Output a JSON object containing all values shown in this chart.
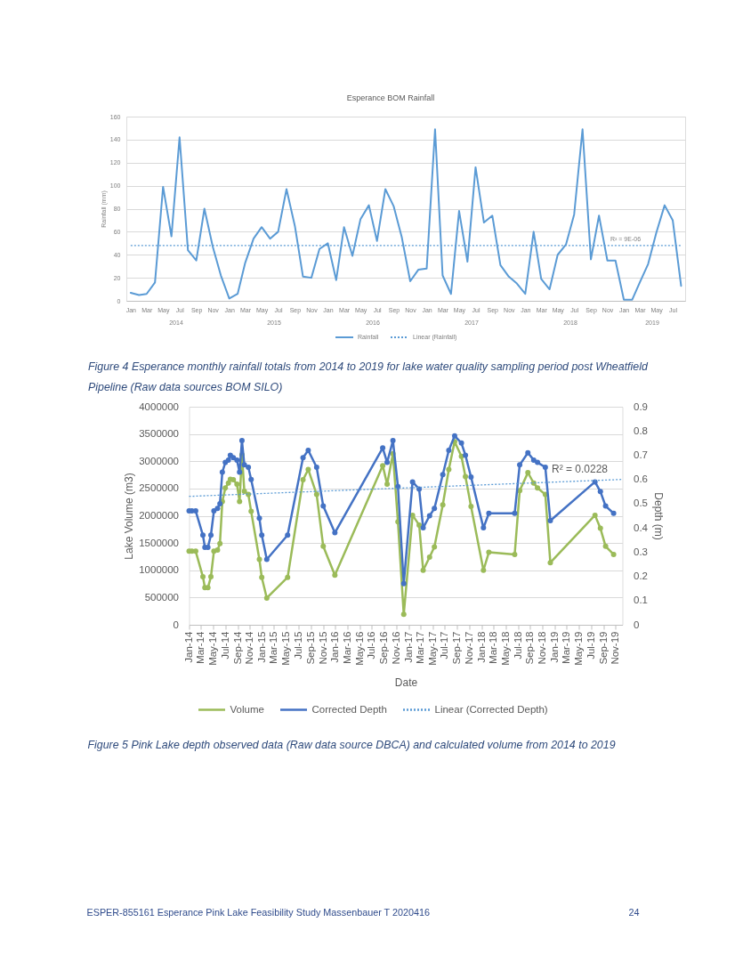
{
  "chart_data": [
    {
      "type": "line",
      "title": "Esperance BOM Rainfall",
      "ylabel": "Rainfall (mm)",
      "x": [
        "2014-01",
        "2014-02",
        "2014-03",
        "2014-04",
        "2014-05",
        "2014-06",
        "2014-07",
        "2014-08",
        "2014-09",
        "2014-10",
        "2014-11",
        "2014-12",
        "2015-01",
        "2015-02",
        "2015-03",
        "2015-04",
        "2015-05",
        "2015-06",
        "2015-07",
        "2015-08",
        "2015-09",
        "2015-10",
        "2015-11",
        "2015-12",
        "2016-01",
        "2016-02",
        "2016-03",
        "2016-04",
        "2016-05",
        "2016-06",
        "2016-07",
        "2016-08",
        "2016-09",
        "2016-10",
        "2016-11",
        "2016-12",
        "2017-01",
        "2017-02",
        "2017-03",
        "2017-04",
        "2017-05",
        "2017-06",
        "2017-07",
        "2017-08",
        "2017-09",
        "2017-10",
        "2017-11",
        "2017-12",
        "2018-01",
        "2018-02",
        "2018-03",
        "2018-04",
        "2018-05",
        "2018-06",
        "2018-07",
        "2018-08",
        "2018-09",
        "2018-10",
        "2018-11",
        "2018-12",
        "2019-01",
        "2019-02",
        "2019-03",
        "2019-04",
        "2019-05",
        "2019-06",
        "2019-07",
        "2019-08"
      ],
      "xlim": [
        "2013-12-16",
        "2019-08-16"
      ],
      "xticks": [
        {
          "value": "2014-01",
          "label": "Jan"
        },
        {
          "value": "2014-03",
          "label": "Mar"
        },
        {
          "value": "2014-05",
          "label": "May"
        },
        {
          "value": "2014-07",
          "label": "Jul"
        },
        {
          "value": "2014-09",
          "label": "Sep"
        },
        {
          "value": "2014-11",
          "label": "Nov"
        },
        {
          "value": "2015-01",
          "label": "Jan"
        },
        {
          "value": "2015-03",
          "label": "Mar"
        },
        {
          "value": "2015-05",
          "label": "May"
        },
        {
          "value": "2015-07",
          "label": "Jul"
        },
        {
          "value": "2015-09",
          "label": "Sep"
        },
        {
          "value": "2015-11",
          "label": "Nov"
        },
        {
          "value": "2016-01",
          "label": "Jan"
        },
        {
          "value": "2016-03",
          "label": "Mar"
        },
        {
          "value": "2016-05",
          "label": "May"
        },
        {
          "value": "2016-07",
          "label": "Jul"
        },
        {
          "value": "2016-09",
          "label": "Sep"
        },
        {
          "value": "2016-11",
          "label": "Nov"
        },
        {
          "value": "2017-01",
          "label": "Jan"
        },
        {
          "value": "2017-03",
          "label": "Mar"
        },
        {
          "value": "2017-05",
          "label": "May"
        },
        {
          "value": "2017-07",
          "label": "Jul"
        },
        {
          "value": "2017-09",
          "label": "Sep"
        },
        {
          "value": "2017-11",
          "label": "Nov"
        },
        {
          "value": "2018-01",
          "label": "Jan"
        },
        {
          "value": "2018-03",
          "label": "Mar"
        },
        {
          "value": "2018-05",
          "label": "May"
        },
        {
          "value": "2018-07",
          "label": "Jul"
        },
        {
          "value": "2018-09",
          "label": "Sep"
        },
        {
          "value": "2018-11",
          "label": "Nov"
        },
        {
          "value": "2019-01",
          "label": "Jan"
        },
        {
          "value": "2019-03",
          "label": "Mar"
        },
        {
          "value": "2019-05",
          "label": "May"
        },
        {
          "value": "2019-07",
          "label": "Jul"
        }
      ],
      "ylim": [
        0,
        160
      ],
      "yticks": [
        0,
        20,
        40,
        60,
        80,
        100,
        120,
        140,
        160
      ],
      "grid": "y",
      "legend": "bottom",
      "series": [
        {
          "name": "Rainfall",
          "color": "#5b9bd5",
          "values": [
            7,
            5,
            6,
            16,
            99,
            56,
            142,
            44,
            35,
            80,
            47,
            22,
            2,
            6,
            33,
            54,
            64,
            54,
            60,
            97,
            65,
            21,
            20,
            45,
            50,
            18,
            64,
            39,
            71,
            83,
            52,
            97,
            82,
            55,
            17,
            27,
            28,
            149,
            22,
            6,
            78,
            34,
            116,
            68,
            74,
            31,
            21,
            15,
            6,
            60,
            19,
            10,
            40,
            49,
            75,
            149,
            36,
            74,
            35,
            35,
            1,
            1,
            16,
            32,
            59,
            83,
            70,
            13
          ]
        },
        {
          "name": "Linear (Rainfall)",
          "color": "#5b9bd5",
          "line_style": "dotted",
          "x": [
            "2014-01",
            "2019-08"
          ],
          "values": [
            48,
            48
          ]
        }
      ],
      "annotations": [
        "R² = 9E-06",
        "2014",
        "2015",
        "2016",
        "2017",
        "2018",
        "2019",
        "Figure 4 Esperance monthly rainfall totals from 2014 to 2019 for lake water quality sampling period post Wheatfield Pipeline (Raw data sources BOM SILO)"
      ]
    },
    {
      "type": "line",
      "xlabel": "Date",
      "ylabel": "Lake Volume (m3)",
      "y2label": "Depth (m)",
      "x": [
        "2014-01-01",
        "2014-01-15",
        "2014-02-03",
        "2014-03-11",
        "2014-03-21",
        "2014-04-05",
        "2014-04-20",
        "2014-05-05",
        "2014-05-23",
        "2014-06-04",
        "2014-06-16",
        "2014-07-01",
        "2014-07-16",
        "2014-07-26",
        "2014-08-10",
        "2014-08-28",
        "2014-09-10",
        "2014-09-22",
        "2014-10-04",
        "2014-10-24",
        "2014-11-07",
        "2014-12-18",
        "2014-12-30",
        "2015-01-24",
        "2015-05-08",
        "2015-07-24",
        "2015-08-19",
        "2015-09-30",
        "2015-11-02",
        "2015-12-30",
        "2016-08-25",
        "2016-09-16",
        "2016-10-15",
        "2016-11-09",
        "2016-12-08",
        "2017-01-21",
        "2017-02-23",
        "2017-03-15",
        "2017-04-16",
        "2017-05-10",
        "2017-06-21",
        "2017-07-21",
        "2017-08-19",
        "2017-09-22",
        "2017-10-12",
        "2017-11-09",
        "2018-01-10",
        "2018-02-06",
        "2018-06-15",
        "2018-07-10",
        "2018-08-20",
        "2018-09-18",
        "2018-10-07",
        "2018-11-15",
        "2018-12-10",
        "2019-07-21",
        "2019-08-17",
        "2019-09-12",
        "2019-10-22"
      ],
      "xlim": [
        "2014-01-01",
        "2019-12-05"
      ],
      "xticks": [
        {
          "value": "2014-01-01",
          "label": "Jan-14"
        },
        {
          "value": "2014-03-01",
          "label": "Mar-14"
        },
        {
          "value": "2014-05-01",
          "label": "May-14"
        },
        {
          "value": "2014-07-01",
          "label": "Jul-14"
        },
        {
          "value": "2014-09-01",
          "label": "Sep-14"
        },
        {
          "value": "2014-11-01",
          "label": "Nov-14"
        },
        {
          "value": "2015-01-01",
          "label": "Jan-15"
        },
        {
          "value": "2015-03-01",
          "label": "Mar-15"
        },
        {
          "value": "2015-05-01",
          "label": "May-15"
        },
        {
          "value": "2015-07-01",
          "label": "Jul-15"
        },
        {
          "value": "2015-09-01",
          "label": "Sep-15"
        },
        {
          "value": "2015-11-01",
          "label": "Nov-15"
        },
        {
          "value": "2016-01-01",
          "label": "Jan-16"
        },
        {
          "value": "2016-03-01",
          "label": "Mar-16"
        },
        {
          "value": "2016-05-01",
          "label": "May-16"
        },
        {
          "value": "2016-07-01",
          "label": "Jul-16"
        },
        {
          "value": "2016-09-01",
          "label": "Sep-16"
        },
        {
          "value": "2016-11-01",
          "label": "Nov-16"
        },
        {
          "value": "2017-01-01",
          "label": "Jan-17"
        },
        {
          "value": "2017-03-01",
          "label": "Mar-17"
        },
        {
          "value": "2017-05-01",
          "label": "May-17"
        },
        {
          "value": "2017-07-01",
          "label": "Jul-17"
        },
        {
          "value": "2017-09-01",
          "label": "Sep-17"
        },
        {
          "value": "2017-11-01",
          "label": "Nov-17"
        },
        {
          "value": "2018-01-01",
          "label": "Jan-18"
        },
        {
          "value": "2018-03-01",
          "label": "Mar-18"
        },
        {
          "value": "2018-05-01",
          "label": "May-18"
        },
        {
          "value": "2018-07-01",
          "label": "Jul-18"
        },
        {
          "value": "2018-09-01",
          "label": "Sep-18"
        },
        {
          "value": "2018-11-01",
          "label": "Nov-18"
        },
        {
          "value": "2019-01-01",
          "label": "Jan-19"
        },
        {
          "value": "2019-03-01",
          "label": "Mar-19"
        },
        {
          "value": "2019-05-01",
          "label": "May-19"
        },
        {
          "value": "2019-07-01",
          "label": "Jul-19"
        },
        {
          "value": "2019-09-01",
          "label": "Sep-19"
        },
        {
          "value": "2019-11-01",
          "label": "Nov-19"
        }
      ],
      "ylim": [
        0,
        4000000
      ],
      "yticks": [
        0,
        500000,
        1000000,
        1500000,
        2000000,
        2500000,
        3000000,
        3500000,
        4000000
      ],
      "y2lim": [
        0,
        0.9
      ],
      "y2ticks": [
        0,
        0.1,
        0.2,
        0.3,
        0.4,
        0.5,
        0.6,
        0.7,
        0.8,
        0.9
      ],
      "grid": "y",
      "legend": "bottom",
      "series": [
        {
          "name": "Volume",
          "color": "#9bbb59",
          "marker": "circle",
          "values": [
            1350000,
            1350000,
            1350000,
            880000,
            680000,
            680000,
            880000,
            1350000,
            1370000,
            1490000,
            2260000,
            2510000,
            2600000,
            2670000,
            2660000,
            2580000,
            2260000,
            3120000,
            2450000,
            2390000,
            2080000,
            1200000,
            870000,
            490000,
            870000,
            2660000,
            2850000,
            2390000,
            1440000,
            910000,
            2920000,
            2580000,
            3140000,
            1890000,
            190000,
            2010000,
            1830000,
            1000000,
            1240000,
            1430000,
            2200000,
            2850000,
            3360000,
            3090000,
            2720000,
            2170000,
            1000000,
            1330000,
            1290000,
            2460000,
            2790000,
            2600000,
            2510000,
            2390000,
            1140000,
            2010000,
            1770000,
            1440000,
            1290000
          ]
        },
        {
          "name": "Corrected Depth",
          "color": "#4472c4",
          "marker": "circle",
          "axis": "y2",
          "values": [
            0.47,
            0.47,
            0.47,
            0.37,
            0.32,
            0.32,
            0.37,
            0.47,
            0.48,
            0.5,
            0.63,
            0.67,
            0.68,
            0.7,
            0.69,
            0.68,
            0.63,
            0.76,
            0.66,
            0.65,
            0.6,
            0.44,
            0.37,
            0.27,
            0.37,
            0.69,
            0.72,
            0.65,
            0.49,
            0.38,
            0.73,
            0.67,
            0.76,
            0.57,
            0.17,
            0.59,
            0.56,
            0.4,
            0.45,
            0.48,
            0.62,
            0.72,
            0.78,
            0.75,
            0.7,
            0.61,
            0.4,
            0.46,
            0.46,
            0.66,
            0.71,
            0.68,
            0.67,
            0.65,
            0.43,
            0.59,
            0.55,
            0.49,
            0.46
          ]
        },
        {
          "name": "Linear (Corrected Depth)",
          "color": "#5b9bd5",
          "line_style": "dotted",
          "axis": "y2",
          "x": [
            "2014-01-01",
            "2019-12-05"
          ],
          "values": [
            0.53,
            0.6
          ]
        }
      ],
      "annotations": [
        "R² = 0.0228",
        "Figure 5 Pink Lake depth observed data (Raw data source DBCA) and calculated volume from 2014 to 2019",
        "ESPER-855161 Esperance Pink Lake Feasibility Study Massenbauer T 2020416",
        "24"
      ]
    }
  ]
}
